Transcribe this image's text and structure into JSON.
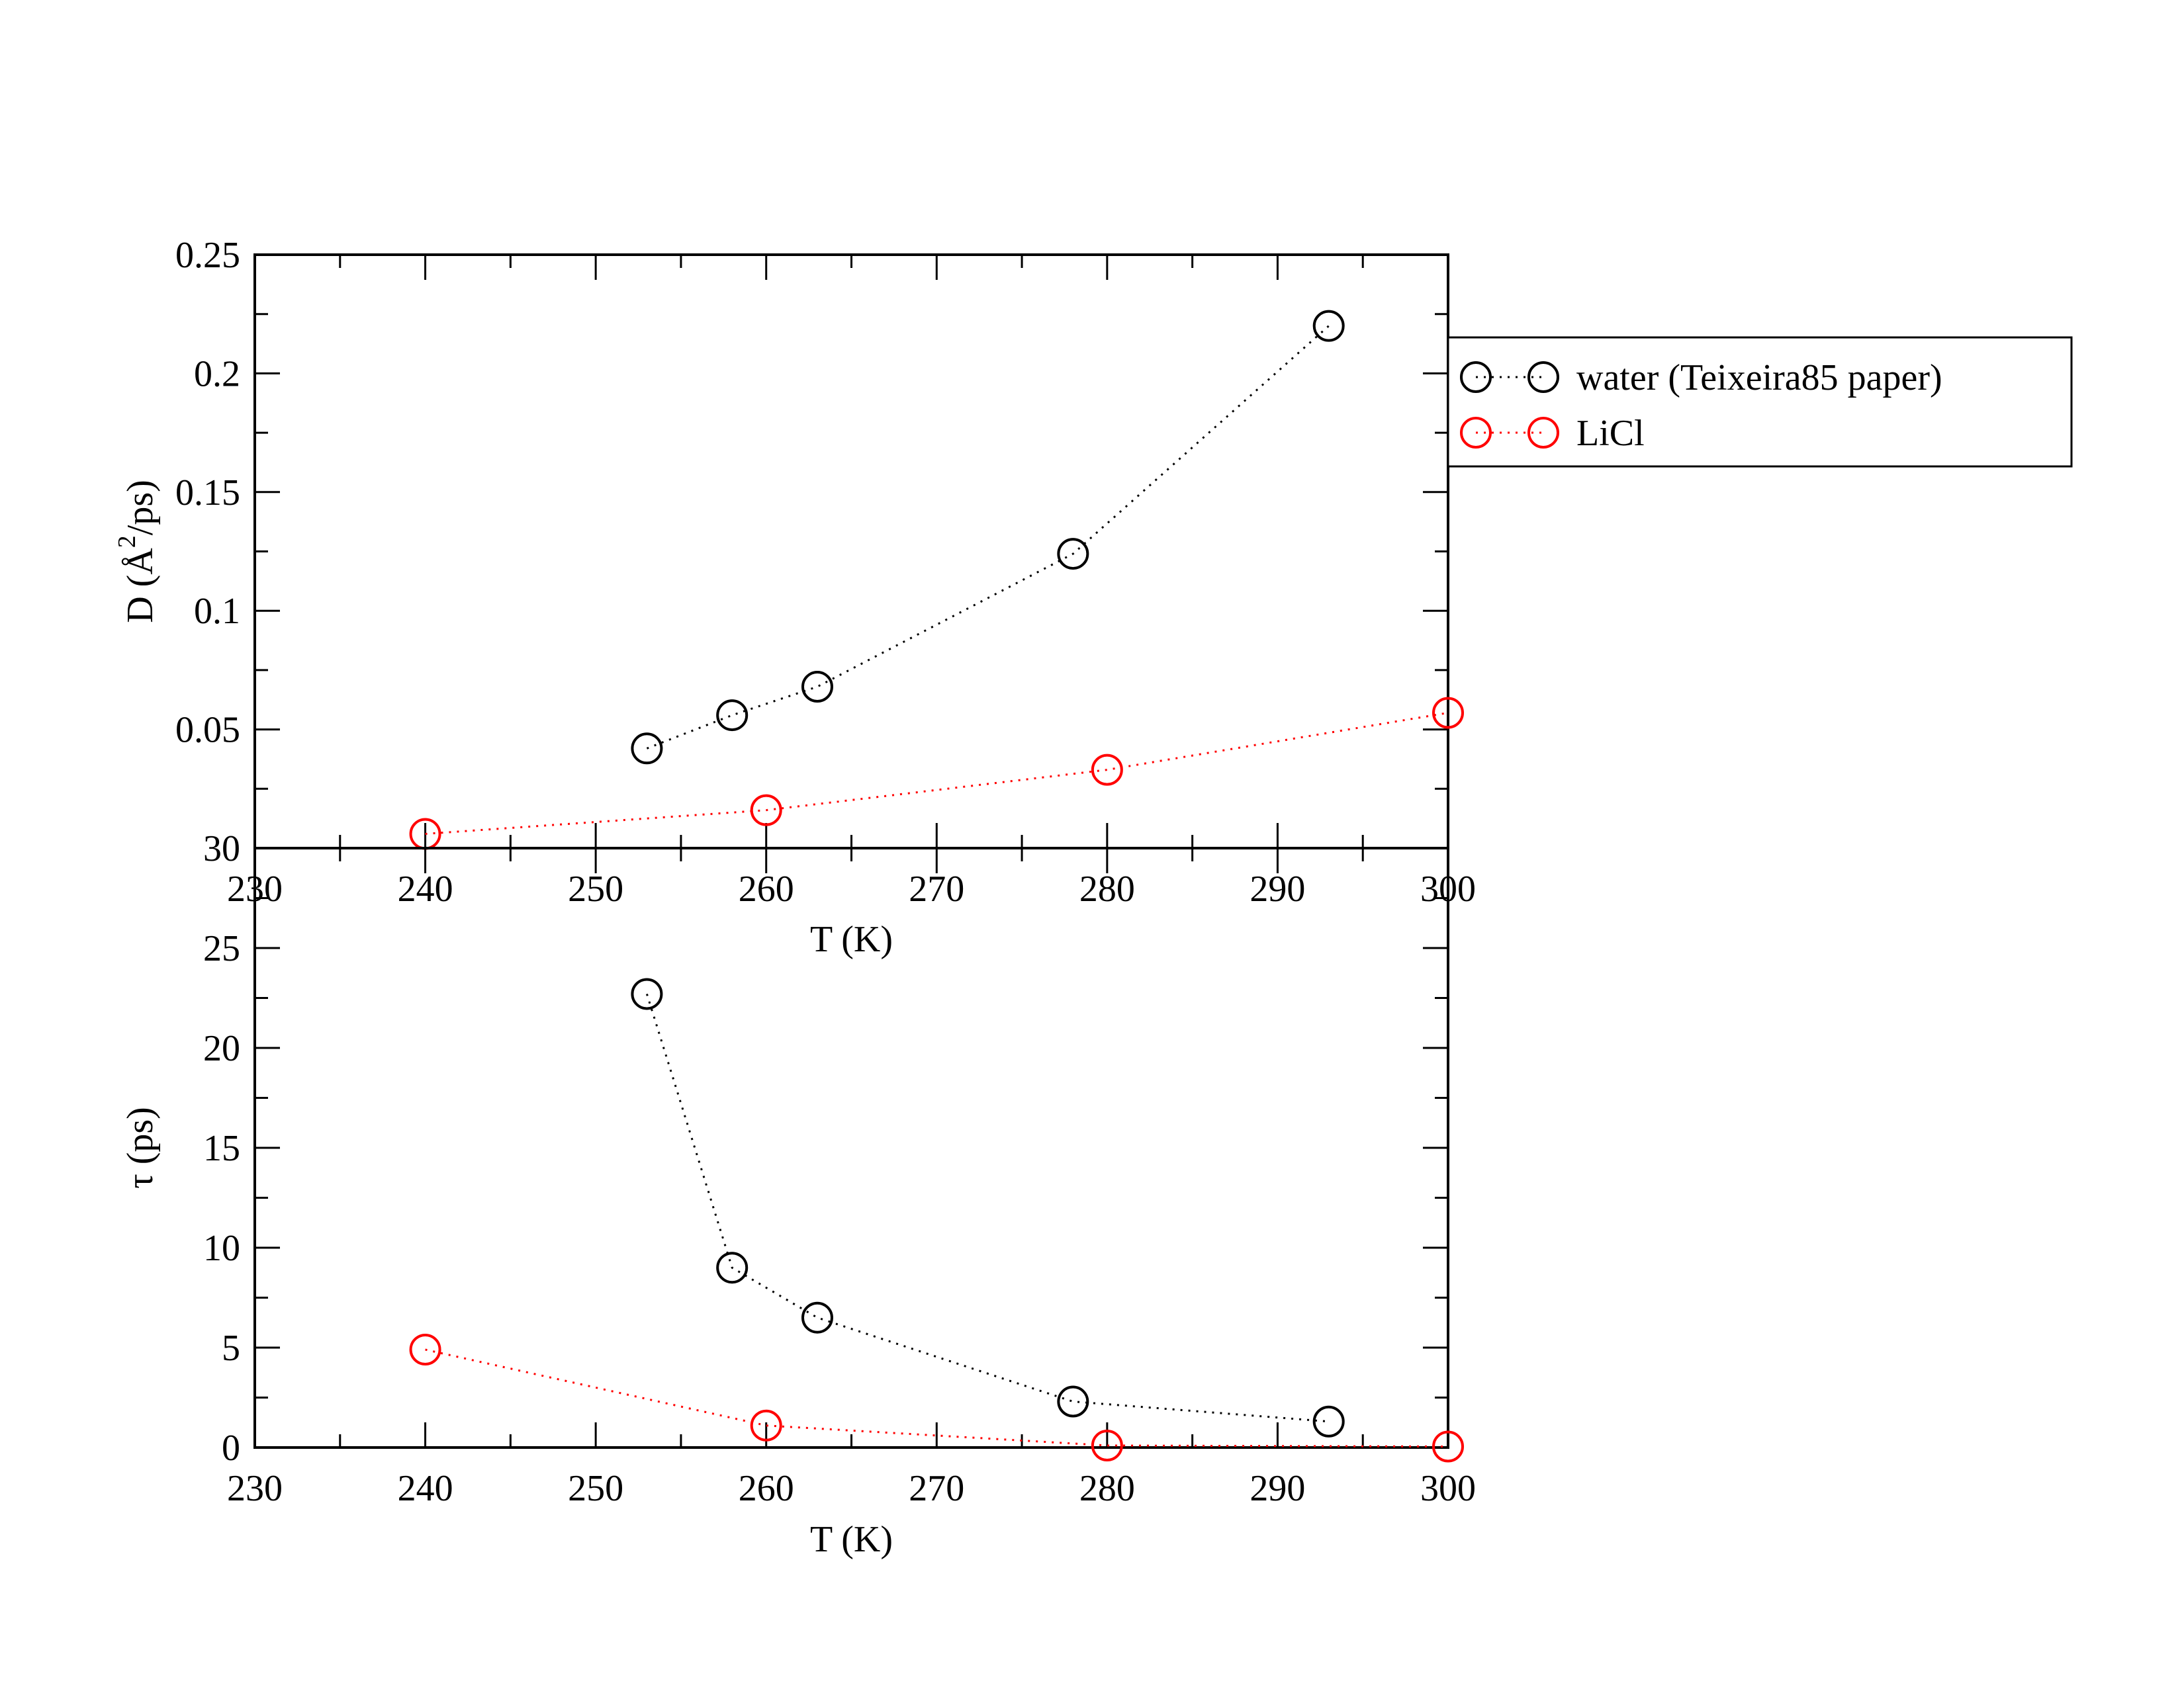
{
  "legend": {
    "entries": [
      {
        "label": "water (Teixeira85 paper)",
        "color": "#000000"
      },
      {
        "label": "LiCl",
        "color": "#ff0000"
      }
    ]
  },
  "chart_data": [
    {
      "type": "line",
      "panel": "top",
      "xlabel": "T (K)",
      "ylabel_parts": {
        "prefix": "D (Å",
        "sup": "2",
        "suffix": "/ps)"
      },
      "xlim": [
        230,
        300
      ],
      "ylim": [
        0,
        0.25
      ],
      "xticks": [
        "230",
        "240",
        "250",
        "260",
        "270",
        "280",
        "290",
        "300"
      ],
      "yticks": [
        "0.05",
        "0.1",
        "0.15",
        "0.2",
        "0.25"
      ],
      "series": [
        {
          "name": "water (Teixeira85 paper)",
          "color": "#000000",
          "marker": "open-circle",
          "line": "dotted",
          "points": [
            [
              253,
              0.042
            ],
            [
              258,
              0.056
            ],
            [
              263,
              0.068
            ],
            [
              278,
              0.124
            ],
            [
              293,
              0.22
            ]
          ]
        },
        {
          "name": "LiCl",
          "color": "#ff0000",
          "marker": "open-circle",
          "line": "dotted",
          "points": [
            [
              240,
              0.006
            ],
            [
              260,
              0.016
            ],
            [
              280,
              0.033
            ],
            [
              300,
              0.057
            ]
          ]
        }
      ],
      "grid": false
    },
    {
      "type": "line",
      "panel": "bottom",
      "xlabel": "T (K)",
      "ylabel": "τ (ps)",
      "xlim": [
        230,
        300
      ],
      "ylim": [
        0,
        30
      ],
      "xticks": [
        "230",
        "240",
        "250",
        "260",
        "270",
        "280",
        "290",
        "300"
      ],
      "yticks": [
        "0",
        "5",
        "10",
        "15",
        "20",
        "25",
        "30"
      ],
      "series": [
        {
          "name": "water (Teixeira85 paper)",
          "color": "#000000",
          "marker": "open-circle",
          "line": "dotted",
          "points": [
            [
              253,
              22.7
            ],
            [
              258,
              9.0
            ],
            [
              263,
              6.5
            ],
            [
              278,
              2.3
            ],
            [
              293,
              1.3
            ]
          ]
        },
        {
          "name": "LiCl",
          "color": "#ff0000",
          "marker": "open-circle",
          "line": "dotted",
          "points": [
            [
              240,
              4.9
            ],
            [
              260,
              1.1
            ],
            [
              280,
              0.1
            ],
            [
              300,
              0.05
            ]
          ]
        }
      ],
      "grid": false
    }
  ]
}
